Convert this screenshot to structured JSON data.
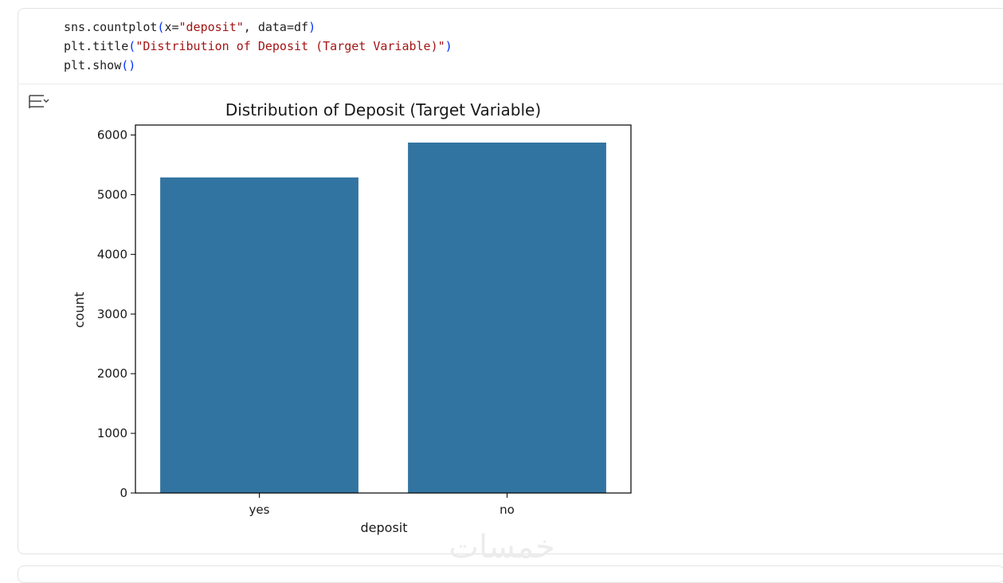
{
  "code": {
    "lines": [
      [
        "sns.countplot",
        "(",
        "x=",
        "\"deposit\"",
        ", data=df",
        ")"
      ],
      [
        "plt.title",
        "(",
        "\"Distribution of Deposit (Target Variable)\"",
        ")"
      ],
      [
        "plt.show",
        "()"
      ]
    ]
  },
  "chart_data": {
    "type": "bar",
    "title": "Distribution of Deposit (Target Variable)",
    "x_label": "deposit",
    "y_label": "count",
    "categories": [
      "yes",
      "no"
    ],
    "values": [
      5289,
      5873
    ],
    "color": "#3274a1",
    "ylim": [
      0,
      6167
    ],
    "yticks": [
      0,
      1000,
      2000,
      3000,
      4000,
      5000,
      6000
    ],
    "grid": false
  },
  "watermark": "خمسات"
}
